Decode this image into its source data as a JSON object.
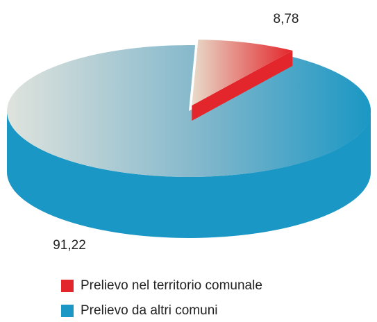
{
  "chart_data": {
    "type": "pie",
    "categories": [
      "Prelievo nel territorio comunale",
      "Prelievo da altri comuni"
    ],
    "values": [
      8.78,
      91.22
    ],
    "value_labels": [
      "8,78",
      "91,22"
    ],
    "colors": [
      "#e3262b",
      "#1a97c4"
    ]
  }
}
